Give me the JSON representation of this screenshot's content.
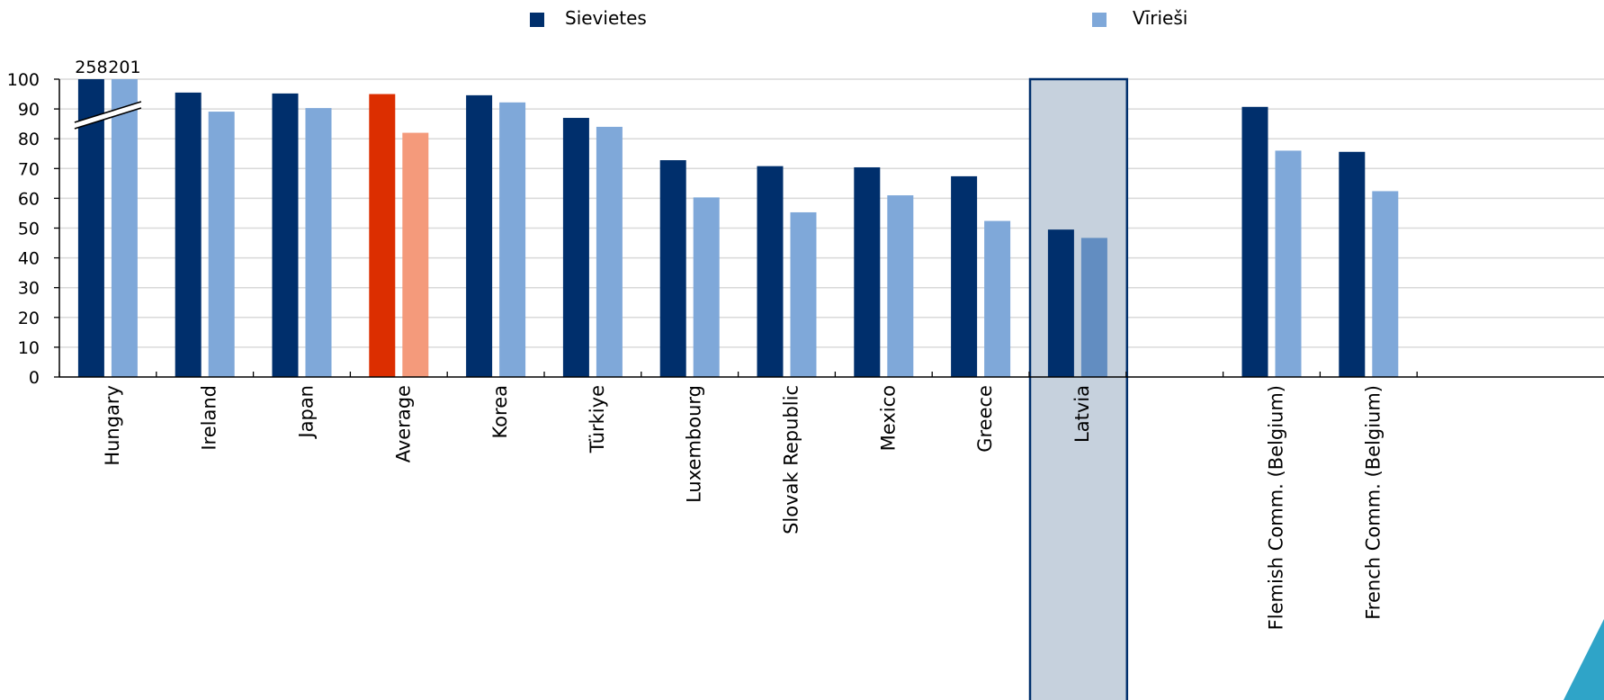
{
  "chart_data": {
    "type": "bar",
    "categories": [
      "Hungary",
      "Ireland",
      "Japan",
      "Average",
      "Korea",
      "Türkiye",
      "Luxembourg",
      "Slovak Republic",
      "Mexico",
      "Greece",
      "Latvia",
      "",
      "Flemish Comm. (Belgium)",
      "French Comm. (Belgium)"
    ],
    "series": [
      {
        "name": "Sievietes",
        "color": "#002f6c",
        "values": [
          258,
          95.5,
          95.2,
          95,
          94.6,
          87,
          72.8,
          70.8,
          70.4,
          67.4,
          49.5,
          null,
          90.7,
          75.6
        ]
      },
      {
        "name": "Vīrieši",
        "color": "#7fa8d9",
        "values": [
          201,
          89.1,
          90.3,
          82,
          92.2,
          84,
          60.3,
          55.3,
          61,
          52.4,
          46.7,
          null,
          76,
          62.4
        ]
      }
    ],
    "data_labels": [
      "258",
      "201"
    ],
    "ylim": [
      0,
      100
    ],
    "yticks": [
      "0",
      "10",
      "20",
      "30",
      "40",
      "50",
      "60",
      "70",
      "80",
      "90",
      "100"
    ],
    "highlight_category": "Latvia",
    "average_colors": {
      "female": "#dc2e00",
      "male": "#f49a7b"
    },
    "highlight_colors": {
      "fill": "#c6d1dd",
      "border": "#002f6c",
      "male_bar": "#628dc1"
    },
    "axis_break": "Hungary",
    "grid": true,
    "legend_position": "top"
  }
}
